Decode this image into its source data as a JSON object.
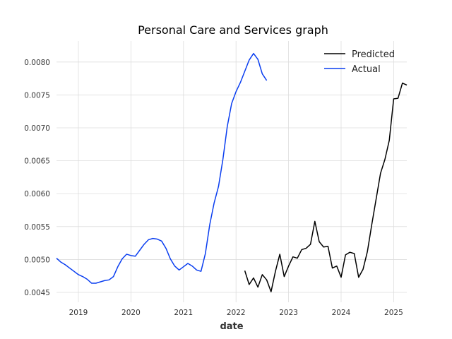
{
  "chart_data": {
    "type": "line",
    "title": "Personal Care and Services graph",
    "xlabel": "date",
    "ylabel": "",
    "xlim": [
      "2018-08-01",
      "2025-04-01"
    ],
    "ylim": [
      0.00435,
      0.00832
    ],
    "x_ticks": [
      "2019",
      "2020",
      "2021",
      "2022",
      "2023",
      "2024",
      "2025"
    ],
    "y_ticks": [
      "0.0045",
      "0.0050",
      "0.0055",
      "0.0060",
      "0.0065",
      "0.0070",
      "0.0075",
      "0.0080"
    ],
    "grid": true,
    "legend_position": "top-right",
    "series": [
      {
        "name": "Predicted",
        "color": "#000000",
        "points": [
          [
            "2022-03",
            0.00483
          ],
          [
            "2022-04",
            0.00462
          ],
          [
            "2022-05",
            0.00472
          ],
          [
            "2022-06",
            0.00458
          ],
          [
            "2022-07",
            0.00477
          ],
          [
            "2022-08",
            0.00469
          ],
          [
            "2022-09",
            0.00451
          ],
          [
            "2022-10",
            0.00482
          ],
          [
            "2022-11",
            0.00508
          ],
          [
            "2022-12",
            0.00474
          ],
          [
            "2023-01",
            0.0049
          ],
          [
            "2023-02",
            0.00504
          ],
          [
            "2023-03",
            0.00502
          ],
          [
            "2023-04",
            0.00515
          ],
          [
            "2023-05",
            0.00517
          ],
          [
            "2023-06",
            0.00523
          ],
          [
            "2023-07",
            0.00558
          ],
          [
            "2023-08",
            0.00527
          ],
          [
            "2023-09",
            0.00519
          ],
          [
            "2023-10",
            0.0052
          ],
          [
            "2023-11",
            0.00487
          ],
          [
            "2023-12",
            0.0049
          ],
          [
            "2024-01",
            0.00473
          ],
          [
            "2024-02",
            0.00507
          ],
          [
            "2024-03",
            0.00511
          ],
          [
            "2024-04",
            0.00509
          ],
          [
            "2024-05",
            0.00473
          ],
          [
            "2024-06",
            0.00485
          ],
          [
            "2024-07",
            0.00512
          ],
          [
            "2024-08",
            0.00553
          ],
          [
            "2024-09",
            0.00592
          ],
          [
            "2024-10",
            0.00631
          ],
          [
            "2024-11",
            0.00652
          ],
          [
            "2024-12",
            0.00681
          ],
          [
            "2025-01",
            0.00744
          ],
          [
            "2025-02",
            0.00745
          ],
          [
            "2025-03",
            0.00768
          ],
          [
            "2025-04",
            0.00765
          ]
        ]
      },
      {
        "name": "Actual",
        "color": "#0a3ef0",
        "points": [
          [
            "2018-08",
            0.00502
          ],
          [
            "2018-09",
            0.00496
          ],
          [
            "2018-10",
            0.00492
          ],
          [
            "2018-11",
            0.00487
          ],
          [
            "2018-12",
            0.00482
          ],
          [
            "2019-01",
            0.00477
          ],
          [
            "2019-02",
            0.00474
          ],
          [
            "2019-03",
            0.0047
          ],
          [
            "2019-04",
            0.00464
          ],
          [
            "2019-05",
            0.00464
          ],
          [
            "2019-06",
            0.00466
          ],
          [
            "2019-07",
            0.00468
          ],
          [
            "2019-08",
            0.00469
          ],
          [
            "2019-09",
            0.00474
          ],
          [
            "2019-10",
            0.00489
          ],
          [
            "2019-11",
            0.00501
          ],
          [
            "2019-12",
            0.00508
          ],
          [
            "2020-01",
            0.00506
          ],
          [
            "2020-02",
            0.00505
          ],
          [
            "2020-03",
            0.00514
          ],
          [
            "2020-04",
            0.00523
          ],
          [
            "2020-05",
            0.0053
          ],
          [
            "2020-06",
            0.00532
          ],
          [
            "2020-07",
            0.00531
          ],
          [
            "2020-08",
            0.00528
          ],
          [
            "2020-09",
            0.00517
          ],
          [
            "2020-10",
            0.00501
          ],
          [
            "2020-11",
            0.0049
          ],
          [
            "2020-12",
            0.00484
          ],
          [
            "2021-01",
            0.00489
          ],
          [
            "2021-02",
            0.00494
          ],
          [
            "2021-03",
            0.0049
          ],
          [
            "2021-04",
            0.00484
          ],
          [
            "2021-05",
            0.00482
          ],
          [
            "2021-06",
            0.00509
          ],
          [
            "2021-07",
            0.00553
          ],
          [
            "2021-08",
            0.00586
          ],
          [
            "2021-09",
            0.00611
          ],
          [
            "2021-10",
            0.00652
          ],
          [
            "2021-11",
            0.00702
          ],
          [
            "2021-12",
            0.00737
          ],
          [
            "2022-01",
            0.00755
          ],
          [
            "2022-02",
            0.00769
          ],
          [
            "2022-03",
            0.00786
          ],
          [
            "2022-04",
            0.00803
          ],
          [
            "2022-05",
            0.00813
          ],
          [
            "2022-06",
            0.00804
          ],
          [
            "2022-07",
            0.00782
          ],
          [
            "2022-08",
            0.00772
          ]
        ]
      }
    ]
  }
}
